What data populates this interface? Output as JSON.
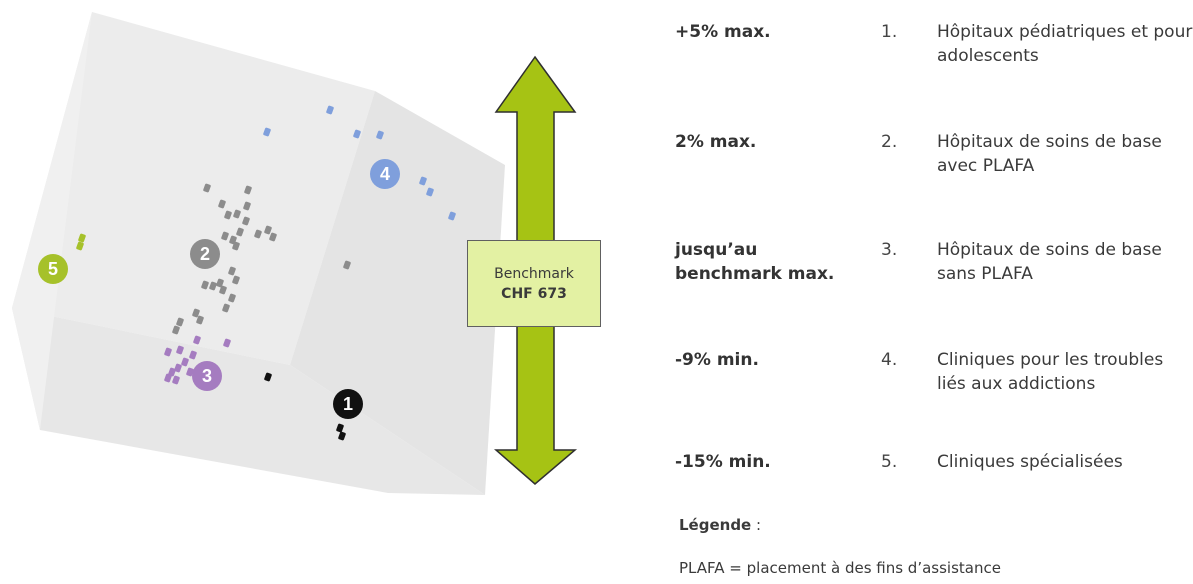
{
  "diagram": {
    "benchmark": {
      "title": "Benchmark",
      "value": "CHF 673"
    },
    "clusters": [
      {
        "id": "1",
        "name": "Hôpitaux pédiatriques et pour adolescents",
        "color": "#111111"
      },
      {
        "id": "2",
        "name": "Hôpitaux de soins de base avec PLAFA",
        "color": "#8c8c8c"
      },
      {
        "id": "3",
        "name": "Hôpitaux de soins de base sans PLAFA",
        "color": "#a57cc0"
      },
      {
        "id": "4",
        "name": "Cliniques pour les troubles liés aux addictions",
        "color": "#7f9fdc"
      },
      {
        "id": "5",
        "name": "Cliniques spécialisées",
        "color": "#a6c12a"
      }
    ],
    "arrow_color": "#a6c314"
  },
  "rules": [
    {
      "label": "+5% max.",
      "number": "1.",
      "description": "Hôpitaux pédiatriques et pour adolescents"
    },
    {
      "label": "2% max.",
      "number": "2.",
      "description": "Hôpitaux de soins de base avec PLAFA"
    },
    {
      "label": "jusqu’au benchmark max.",
      "number": "3.",
      "description": "Hôpitaux de soins de base sans PLAFA"
    },
    {
      "label": "-9% min.",
      "number": "4.",
      "description": "Cliniques pour les troubles liés aux addictions"
    },
    {
      "label": "-15% min.",
      "number": "5.",
      "description": "Cliniques spécialisées"
    }
  ],
  "legend": {
    "title": "Légende",
    "separator": " :",
    "text": "PLAFA = placement à des fins d’assistance"
  }
}
